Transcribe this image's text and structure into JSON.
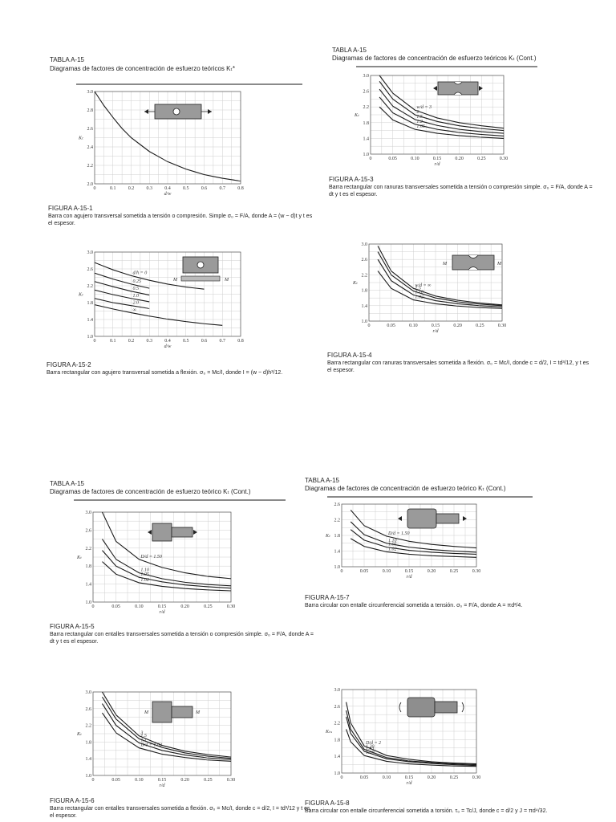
{
  "header": {
    "tabla": "TABLA A-15",
    "titulo": "Diagramas de factores de concentración de esfuerzo teóricos Kₜ*",
    "tabla_b": "TABLA A-15",
    "titulo_b": "Diagramas de factores de concentración de esfuerzo teóricos Kₜ (Cont.)",
    "tabla_c": "TABLA A-15",
    "titulo_c": "Diagramas de factores de concentración de esfuerzo teórico Kₜ (Cont.)",
    "tabla_d": "TABLA A-15",
    "titulo_d": "Diagramas de factores de concentración de esfuerzo teórico Kₜ (Cont.)"
  },
  "captions": {
    "f1": {
      "fig": "FIGURA A-15-1",
      "text": "Barra con agujero transversal sometida a tensión o compresión. Simple σ₀ = F/A, donde A = (w − d)t y t es el espesor."
    },
    "f2": {
      "fig": "FIGURA A-15-2",
      "text": "Barra rectangular con agujero transversal sometida a flexión. σ₀ = Mc/I, donde I = (w − d)h³/12."
    },
    "f3": {
      "fig": "FIGURA A-15-3",
      "text": "Barra rectangular con ranuras transversales sometida a tensión o compresión simple. σ₀ = F/A, donde A = dt y t es el espesor."
    },
    "f4": {
      "fig": "FIGURA A-15-4",
      "text": "Barra rectangular con ranuras transversales sometida a flexión. σ₀ = Mc/I, donde c = d/2, I = td³/12, y t es el espesor."
    },
    "f5": {
      "fig": "FIGURA A-15-5",
      "text": "Barra rectangular con entalles transversales sometida a tensión o compresión simple. σ₀ = F/A, donde A = dt y t es el espesor."
    },
    "f6": {
      "fig": "FIGURA A-15-6",
      "text": "Barra rectangular con entalles transversales sometida a flexión. σ₀ = Mc/I, donde c = d/2, I = td³/12 y t es el espesor."
    },
    "f7": {
      "fig": "FIGURA A-15-7",
      "text": "Barra circular con entalle circunferencial sometida a tensión. σ₀ = F/A, donde A = πd²/4."
    },
    "f8": {
      "fig": "FIGURA A-15-8",
      "text": "Barra circular con entalle circunferencial sometida a torsión. τ₀ = Tc/J, donde c = d/2 y J = πd⁴/32."
    }
  },
  "chart_data": [
    {
      "type": "line",
      "id": "c1",
      "xlabel": "d/w",
      "ylabel": "Kₜ",
      "xlim": [
        0,
        0.8
      ],
      "ylim": [
        2.0,
        3.0
      ],
      "xticks": [
        0,
        0.1,
        0.2,
        0.3,
        0.4,
        0.5,
        0.6,
        0.7,
        0.8
      ],
      "xtick_labels": [
        "0",
        "0.1",
        "0.2",
        "0.3",
        "0.4",
        "0.5",
        "0.6",
        "0.7",
        "0.8"
      ],
      "yticks": [
        2.0,
        2.2,
        2.4,
        2.6,
        2.8,
        3.0
      ],
      "ytick_labels": [
        "2.0",
        "2.2",
        "2.4",
        "2.6",
        "2.8",
        "3.0"
      ],
      "grid": true,
      "series": [
        {
          "label": "",
          "x": [
            0,
            0.05,
            0.1,
            0.15,
            0.2,
            0.3,
            0.4,
            0.5,
            0.6,
            0.7,
            0.8
          ],
          "y": [
            3.0,
            2.85,
            2.72,
            2.6,
            2.5,
            2.35,
            2.24,
            2.16,
            2.1,
            2.06,
            2.03
          ]
        }
      ]
    },
    {
      "type": "line",
      "id": "c2",
      "xlabel": "d/w",
      "ylabel": "Kₜ",
      "xlim": [
        0,
        0.8
      ],
      "ylim": [
        1.0,
        3.0
      ],
      "xticks": [
        0,
        0.1,
        0.2,
        0.3,
        0.4,
        0.5,
        0.6,
        0.7,
        0.8
      ],
      "xtick_labels": [
        "0",
        "0.1",
        "0.2",
        "0.3",
        "0.4",
        "0.5",
        "0.6",
        "0.7",
        "0.8"
      ],
      "yticks": [
        1.0,
        1.4,
        1.8,
        2.2,
        2.6,
        3.0
      ],
      "ytick_labels": [
        "1.0",
        "1.4",
        "1.8",
        "2.2",
        "2.6",
        "3.0"
      ],
      "grid": true,
      "series": [
        {
          "label": "d/h = 0",
          "x": [
            0,
            0.1,
            0.2,
            0.3,
            0.4,
            0.5,
            0.6
          ],
          "y": [
            2.75,
            2.58,
            2.44,
            2.33,
            2.24,
            2.17,
            2.12
          ]
        },
        {
          "label": "0.25",
          "x": [
            0,
            0.1,
            0.2,
            0.3
          ],
          "y": [
            2.5,
            2.36,
            2.24,
            2.14
          ]
        },
        {
          "label": "0.5",
          "x": [
            0,
            0.1,
            0.2,
            0.3
          ],
          "y": [
            2.3,
            2.18,
            2.07,
            1.98
          ]
        },
        {
          "label": "1.0",
          "x": [
            0,
            0.1,
            0.2,
            0.3
          ],
          "y": [
            2.1,
            1.99,
            1.9,
            1.82
          ]
        },
        {
          "label": "2.0",
          "x": [
            0,
            0.1,
            0.2,
            0.3
          ],
          "y": [
            1.9,
            1.8,
            1.73,
            1.66
          ]
        },
        {
          "label": "∞",
          "x": [
            0,
            0.1,
            0.2,
            0.3,
            0.4,
            0.5,
            0.6,
            0.7
          ],
          "y": [
            1.75,
            1.65,
            1.56,
            1.48,
            1.41,
            1.35,
            1.3,
            1.26
          ]
        }
      ]
    },
    {
      "type": "line",
      "id": "c3",
      "xlabel": "r/d",
      "ylabel": "Kₜ",
      "xlim": [
        0,
        0.3
      ],
      "ylim": [
        1.0,
        3.0
      ],
      "xticks": [
        0,
        0.05,
        0.1,
        0.15,
        0.2,
        0.25,
        0.3
      ],
      "xtick_labels": [
        "0",
        "0.05",
        "0.10",
        "0.15",
        "0.20",
        "0.25",
        "0.30"
      ],
      "yticks": [
        1.0,
        1.4,
        1.8,
        2.2,
        2.6,
        3.0
      ],
      "ytick_labels": [
        "1.0",
        "1.4",
        "1.8",
        "2.2",
        "2.6",
        "3.0"
      ],
      "grid": true,
      "series": [
        {
          "label": "w/d = 3",
          "x": [
            0.02,
            0.05,
            0.1,
            0.15,
            0.2,
            0.25,
            0.3
          ],
          "y": [
            3.0,
            2.55,
            2.12,
            1.92,
            1.8,
            1.72,
            1.66
          ]
        },
        {
          "label": "2",
          "x": [
            0.02,
            0.05,
            0.1,
            0.15,
            0.2,
            0.25,
            0.3
          ],
          "y": [
            2.85,
            2.4,
            2.0,
            1.83,
            1.72,
            1.65,
            1.6
          ]
        },
        {
          "label": "1.5",
          "x": [
            0.02,
            0.05,
            0.1,
            0.15,
            0.2,
            0.25,
            0.3
          ],
          "y": [
            2.65,
            2.22,
            1.88,
            1.73,
            1.63,
            1.57,
            1.53
          ]
        },
        {
          "label": "1.2",
          "x": [
            0.02,
            0.05,
            0.1,
            0.15,
            0.2,
            0.25,
            0.3
          ],
          "y": [
            2.45,
            2.05,
            1.76,
            1.63,
            1.55,
            1.5,
            1.46
          ]
        },
        {
          "label": "1.05",
          "x": [
            0.02,
            0.05,
            0.1,
            0.15,
            0.2,
            0.25,
            0.3
          ],
          "y": [
            2.2,
            1.87,
            1.63,
            1.53,
            1.47,
            1.43,
            1.4
          ]
        }
      ]
    },
    {
      "type": "line",
      "id": "c4",
      "xlabel": "r/d",
      "ylabel": "Kₜ",
      "xlim": [
        0,
        0.3
      ],
      "ylim": [
        1.0,
        3.0
      ],
      "xticks": [
        0,
        0.05,
        0.1,
        0.15,
        0.2,
        0.25,
        0.3
      ],
      "xtick_labels": [
        "0",
        "0.05",
        "0.10",
        "0.15",
        "0.20",
        "0.25",
        "0.30"
      ],
      "yticks": [
        1.0,
        1.4,
        1.8,
        2.2,
        2.6,
        3.0
      ],
      "ytick_labels": [
        "1.0",
        "1.4",
        "1.8",
        "2.2",
        "2.6",
        "3.0"
      ],
      "grid": true,
      "series": [
        {
          "label": "w/d = ∞",
          "x": [
            0.02,
            0.05,
            0.1,
            0.15,
            0.2,
            0.25,
            0.3
          ],
          "y": [
            2.95,
            2.3,
            1.85,
            1.65,
            1.54,
            1.47,
            1.42
          ]
        },
        {
          "label": "1.5",
          "x": [
            0.02,
            0.05,
            0.1,
            0.15,
            0.2,
            0.25,
            0.3
          ],
          "y": [
            2.8,
            2.2,
            1.78,
            1.6,
            1.5,
            1.44,
            1.4
          ]
        },
        {
          "label": "1.10",
          "x": [
            0.02,
            0.05,
            0.1,
            0.15,
            0.2,
            0.25,
            0.3
          ],
          "y": [
            2.6,
            2.05,
            1.68,
            1.53,
            1.45,
            1.4,
            1.37
          ]
        },
        {
          "label": "1.02",
          "x": [
            0.02,
            0.05,
            0.1,
            0.15,
            0.2,
            0.25,
            0.3
          ],
          "y": [
            2.3,
            1.85,
            1.55,
            1.45,
            1.39,
            1.35,
            1.33
          ]
        }
      ]
    },
    {
      "type": "line",
      "id": "c5",
      "xlabel": "r/d",
      "ylabel": "Kₜ",
      "xlim": [
        0,
        0.3
      ],
      "ylim": [
        1.0,
        3.0
      ],
      "xticks": [
        0,
        0.05,
        0.1,
        0.15,
        0.2,
        0.25,
        0.3
      ],
      "xtick_labels": [
        "0",
        "0.05",
        "0.10",
        "0.15",
        "0.20",
        "0.25",
        "0.30"
      ],
      "yticks": [
        1.0,
        1.4,
        1.8,
        2.2,
        2.6,
        3.0
      ],
      "ytick_labels": [
        "1.0",
        "1.4",
        "1.8",
        "2.2",
        "2.6",
        "3.0"
      ],
      "grid": true,
      "series": [
        {
          "label": "D/d = 1.50",
          "x": [
            0.02,
            0.05,
            0.1,
            0.15,
            0.2,
            0.25,
            0.3
          ],
          "y": [
            3.0,
            2.35,
            1.95,
            1.77,
            1.65,
            1.57,
            1.52
          ]
        },
        {
          "label": "1.10",
          "x": [
            0.02,
            0.05,
            0.1,
            0.15,
            0.2,
            0.25,
            0.3
          ],
          "y": [
            2.4,
            1.95,
            1.65,
            1.52,
            1.44,
            1.39,
            1.36
          ]
        },
        {
          "label": "1.05",
          "x": [
            0.02,
            0.05,
            0.1,
            0.15,
            0.2,
            0.25,
            0.3
          ],
          "y": [
            2.15,
            1.8,
            1.55,
            1.45,
            1.38,
            1.34,
            1.31
          ]
        },
        {
          "label": "1.02",
          "x": [
            0.02,
            0.05,
            0.1,
            0.15,
            0.2,
            0.25,
            0.3
          ],
          "y": [
            1.9,
            1.62,
            1.43,
            1.35,
            1.3,
            1.27,
            1.25
          ]
        }
      ]
    },
    {
      "type": "line",
      "id": "c6",
      "xlabel": "r/d",
      "ylabel": "Kₜ",
      "xlim": [
        0,
        0.3
      ],
      "ylim": [
        1.0,
        3.0
      ],
      "xticks": [
        0,
        0.05,
        0.1,
        0.15,
        0.2,
        0.25,
        0.3
      ],
      "xtick_labels": [
        "0",
        "0.05",
        "0.10",
        "0.15",
        "0.20",
        "0.25",
        "0.30"
      ],
      "yticks": [
        1.0,
        1.4,
        1.8,
        2.2,
        2.6,
        3.0
      ],
      "ytick_labels": [
        "1.0",
        "1.4",
        "1.8",
        "2.2",
        "2.6",
        "3.0"
      ],
      "grid": true,
      "series": [
        {
          "label": "3",
          "x": [
            0.02,
            0.05,
            0.1,
            0.15,
            0.2,
            0.25,
            0.3
          ],
          "y": [
            3.0,
            2.45,
            1.95,
            1.72,
            1.58,
            1.5,
            1.44
          ]
        },
        {
          "label": "1.5",
          "x": [
            0.02,
            0.05,
            0.1,
            0.15,
            0.2,
            0.25,
            0.3
          ],
          "y": [
            2.88,
            2.35,
            1.88,
            1.67,
            1.54,
            1.46,
            1.41
          ]
        },
        {
          "label": "1.1",
          "x": [
            0.02,
            0.05,
            0.1,
            0.15,
            0.2,
            0.25,
            0.3
          ],
          "y": [
            2.72,
            2.2,
            1.78,
            1.6,
            1.49,
            1.42,
            1.38
          ]
        },
        {
          "label": "D/d = 1.02",
          "x": [
            0.02,
            0.05,
            0.1,
            0.15,
            0.2,
            0.25,
            0.3
          ],
          "y": [
            2.5,
            2.02,
            1.66,
            1.51,
            1.43,
            1.37,
            1.34
          ]
        }
      ]
    },
    {
      "type": "line",
      "id": "c7",
      "xlabel": "r/d",
      "ylabel": "Kₜ",
      "xlim": [
        0,
        0.3
      ],
      "ylim": [
        1.0,
        2.6
      ],
      "xticks": [
        0,
        0.05,
        0.1,
        0.15,
        0.2,
        0.25,
        0.3
      ],
      "xtick_labels": [
        "0",
        "0.05",
        "0.10",
        "0.15",
        "0.20",
        "0.25",
        "0.30"
      ],
      "yticks": [
        1.0,
        1.4,
        1.8,
        2.2,
        2.6
      ],
      "ytick_labels": [
        "1.0",
        "1.4",
        "1.8",
        "2.2",
        "2.6"
      ],
      "grid": true,
      "series": [
        {
          "label": "D/d = 1.50",
          "x": [
            0.02,
            0.05,
            0.1,
            0.15,
            0.2,
            0.25,
            0.3
          ],
          "y": [
            2.45,
            2.05,
            1.78,
            1.65,
            1.57,
            1.52,
            1.48
          ]
        },
        {
          "label": "1.10",
          "x": [
            0.02,
            0.05,
            0.1,
            0.15,
            0.2,
            0.25,
            0.3
          ],
          "y": [
            2.15,
            1.82,
            1.6,
            1.5,
            1.44,
            1.4,
            1.37
          ]
        },
        {
          "label": "1.05",
          "x": [
            0.02,
            0.05,
            0.1,
            0.15,
            0.2,
            0.25,
            0.3
          ],
          "y": [
            1.95,
            1.68,
            1.5,
            1.42,
            1.37,
            1.34,
            1.32
          ]
        },
        {
          "label": "1.02",
          "x": [
            0.02,
            0.05,
            0.1,
            0.15,
            0.2,
            0.25,
            0.3
          ],
          "y": [
            1.72,
            1.52,
            1.38,
            1.32,
            1.28,
            1.26,
            1.24
          ]
        }
      ]
    },
    {
      "type": "line",
      "id": "c8",
      "xlabel": "r/d",
      "ylabel": "Kₜₛ",
      "xlim": [
        0,
        0.3
      ],
      "ylim": [
        1.0,
        3.0
      ],
      "xticks": [
        0,
        0.05,
        0.1,
        0.15,
        0.2,
        0.25,
        0.3
      ],
      "xtick_labels": [
        "0",
        "0.05",
        "0.10",
        "0.15",
        "0.20",
        "0.25",
        "0.30"
      ],
      "yticks": [
        1.0,
        1.4,
        1.8,
        2.2,
        2.6,
        3.0
      ],
      "ytick_labels": [
        "1.0",
        "1.4",
        "1.8",
        "2.2",
        "2.6",
        "3.0"
      ],
      "grid": true,
      "series": [
        {
          "label": "D/d = 2",
          "x": [
            0.01,
            0.02,
            0.05,
            0.1,
            0.15,
            0.2,
            0.25,
            0.3
          ],
          "y": [
            2.7,
            2.2,
            1.65,
            1.42,
            1.33,
            1.27,
            1.24,
            1.22
          ]
        },
        {
          "label": "1.20",
          "x": [
            0.01,
            0.02,
            0.05,
            0.1,
            0.15,
            0.2,
            0.25,
            0.3
          ],
          "y": [
            2.5,
            2.05,
            1.57,
            1.37,
            1.29,
            1.25,
            1.22,
            1.2
          ]
        },
        {
          "label": "1.33",
          "x": [
            0.01,
            0.02,
            0.05,
            0.1,
            0.15,
            0.2,
            0.25,
            0.3
          ],
          "y": [
            2.35,
            1.95,
            1.52,
            1.34,
            1.27,
            1.23,
            1.2,
            1.18
          ]
        },
        {
          "label": "1.09",
          "x": [
            0.01,
            0.02,
            0.05,
            0.1,
            0.15,
            0.2,
            0.25,
            0.3
          ],
          "y": [
            2.05,
            1.75,
            1.42,
            1.28,
            1.22,
            1.19,
            1.17,
            1.16
          ]
        }
      ]
    }
  ]
}
